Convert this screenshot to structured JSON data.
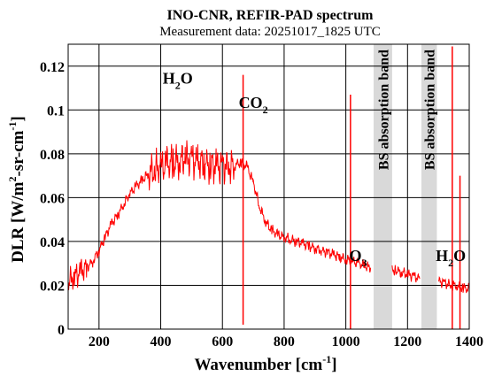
{
  "chart_data": {
    "type": "line",
    "title": "INO-CNR, REFIR-PAD spectrum",
    "subtitle": "Measurement data: 20251017_1825 UTC",
    "xlabel": "Wavenumber [cm-1]",
    "xlabel_parts": {
      "main": "Wavenumber [cm",
      "sup": "-1",
      "tail": "]"
    },
    "ylabel": "DLR [W/m2-sr-cm-1]",
    "ylabel_parts": {
      "a": "DLR [W/m",
      "sup1": "2",
      "b": "-sr-cm",
      "sup2": "-1",
      "c": "]"
    },
    "xlim": [
      100,
      1400
    ],
    "ylim": [
      0,
      0.13
    ],
    "x_ticks": [
      200,
      400,
      600,
      800,
      1000,
      1200,
      1400
    ],
    "x_tick_labels": [
      "200",
      "400",
      "600",
      "800",
      "1000",
      "1200",
      "1400"
    ],
    "y_ticks": [
      0,
      0.02,
      0.04,
      0.06,
      0.08,
      0.1,
      0.12
    ],
    "y_tick_labels": [
      "0",
      "0.02",
      "0.04",
      "0.06",
      "0.08",
      "0.1",
      "0.12"
    ],
    "grid": true,
    "series_color": "#ff0000",
    "band_color": "#d9d9d9",
    "bands": [
      {
        "label": "BS absorption band",
        "x0": 1090,
        "x1": 1150
      },
      {
        "label": "BS absorption band",
        "x0": 1245,
        "x1": 1295
      }
    ],
    "annotations": [
      {
        "base": "H",
        "sub": "2",
        "tail": "O",
        "x": 455,
        "y": 0.112
      },
      {
        "base": "CO",
        "sub": "2",
        "tail": "",
        "x": 700,
        "y": 0.101
      },
      {
        "base": "O",
        "sub": "3",
        "tail": "",
        "x": 1040,
        "y": 0.031
      },
      {
        "base": "H",
        "sub": "2",
        "tail": "O",
        "x": 1340,
        "y": 0.031
      }
    ],
    "series": [
      {
        "x": [
          100,
          120,
          140,
          160,
          180,
          200,
          220,
          240,
          260,
          280,
          300,
          320,
          340,
          360,
          380,
          400,
          420,
          440,
          460,
          480,
          500,
          520,
          540,
          560,
          580,
          600,
          620,
          640,
          660,
          680,
          700,
          720,
          740,
          760,
          780,
          800,
          820,
          840,
          860,
          880,
          900,
          920,
          940,
          960,
          980,
          1000,
          1020,
          1040,
          1060,
          1080,
          1150,
          1160,
          1180,
          1200,
          1220,
          1240,
          1300,
          1320,
          1340,
          1360,
          1380,
          1400
        ],
        "y": [
          0.022,
          0.024,
          0.026,
          0.028,
          0.031,
          0.036,
          0.042,
          0.048,
          0.052,
          0.057,
          0.062,
          0.065,
          0.068,
          0.071,
          0.073,
          0.074,
          0.075,
          0.076,
          0.077,
          0.078,
          0.077,
          0.076,
          0.076,
          0.075,
          0.074,
          0.074,
          0.074,
          0.075,
          0.076,
          0.074,
          0.067,
          0.056,
          0.049,
          0.045,
          0.043,
          0.042,
          0.041,
          0.04,
          0.039,
          0.038,
          0.037,
          0.036,
          0.035,
          0.034,
          0.033,
          0.032,
          0.031,
          0.03,
          0.029,
          0.028,
          0.027,
          0.027,
          0.026,
          0.025,
          0.024,
          0.023,
          0.022,
          0.021,
          0.02,
          0.02,
          0.019,
          0.018
        ]
      }
    ]
  }
}
